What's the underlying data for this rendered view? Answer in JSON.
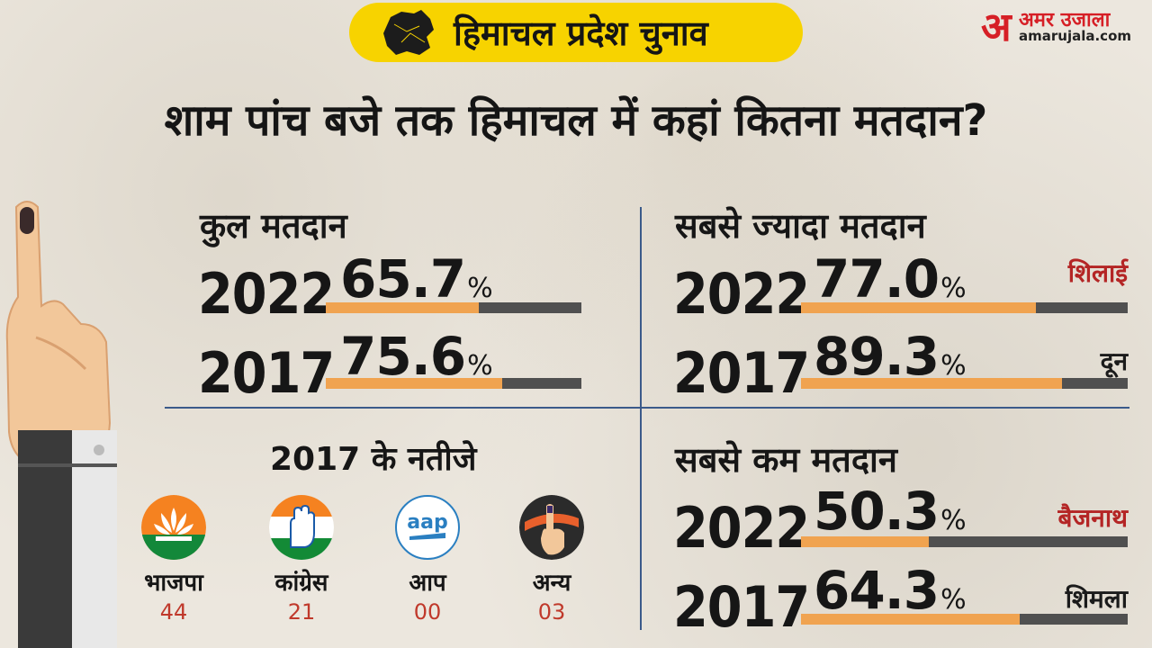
{
  "header": {
    "tag": "हिमाचल प्रदेश चुनाव",
    "brand_name": "अमर उजाला",
    "brand_mark": "अ",
    "brand_url": "amarujala.com"
  },
  "headline": "शाम पांच बजे तक हिमाचल में कहां कितना मतदान?",
  "total_turnout": {
    "title": "कुल मतदान",
    "rows": [
      {
        "year": "2022",
        "value": "65.7",
        "fraction": 0.6
      },
      {
        "year": "2017",
        "value": "75.6",
        "fraction": 0.69
      }
    ]
  },
  "highest_turnout": {
    "title": "सबसे ज्यादा मतदान",
    "rows": [
      {
        "year": "2022",
        "value": "77.0",
        "place": "शिलाई",
        "place_color": "red",
        "fraction": 0.72
      },
      {
        "year": "2017",
        "value": "89.3",
        "place": "दून",
        "place_color": "dark",
        "fraction": 0.8
      }
    ]
  },
  "lowest_turnout": {
    "title": "सबसे कम मतदान",
    "rows": [
      {
        "year": "2022",
        "value": "50.3",
        "place": "बैजनाथ",
        "place_color": "red",
        "fraction": 0.39
      },
      {
        "year": "2017",
        "value": "64.3",
        "place": "शिमला",
        "place_color": "dark",
        "fraction": 0.67
      }
    ]
  },
  "percent_symbol": "%",
  "results": {
    "title": "2017 के नतीजे",
    "parties": [
      {
        "name": "भाजपा",
        "seats": "44",
        "icon": "bjp-lotus-icon"
      },
      {
        "name": "कांग्रेस",
        "seats": "21",
        "icon": "congress-hand-icon"
      },
      {
        "name": "आप",
        "seats": "00",
        "icon": "aap-logo-icon",
        "logo_text": "aap"
      },
      {
        "name": "अन्य",
        "seats": "03",
        "icon": "voter-finger-icon"
      }
    ]
  },
  "colors": {
    "accent_yellow": "#f7d300",
    "bar_fill": "#f0a350",
    "bar_track": "#505050",
    "divider": "#3b5a8a",
    "brand_red": "#d61f26",
    "place_red": "#b42525",
    "seats_red": "#c0392b"
  }
}
